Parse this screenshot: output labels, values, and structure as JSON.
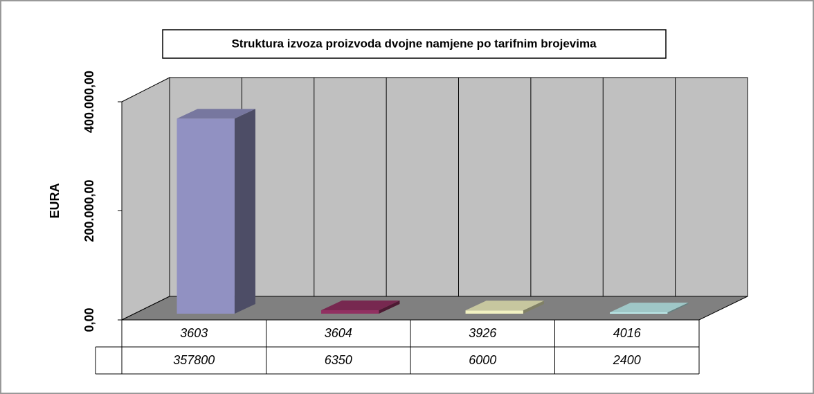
{
  "chart_data": {
    "type": "bar",
    "title": "Struktura izvoza proizvoda dvojne namjene po tarifnim brojevima",
    "y_label": "EURA",
    "categories": [
      "3603",
      "3604",
      "3926",
      "4016"
    ],
    "values": [
      357800,
      6350,
      6000,
      2400
    ],
    "colors": [
      "#9999cc",
      "#993366",
      "#ffffcc",
      "#ccffff"
    ],
    "ylim": [
      0,
      400000
    ],
    "yticks": [
      {
        "value": 0,
        "label": "0,00"
      },
      {
        "value": 200000,
        "label": "200.000,00"
      },
      {
        "value": 400000,
        "label": "400.000,00"
      }
    ]
  }
}
